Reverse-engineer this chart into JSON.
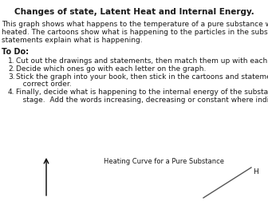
{
  "title": "Changes of state, Latent Heat and Internal Energy.",
  "intro_lines": [
    "This graph shows what happens to the temperature of a pure substance when it is",
    "heated. The cartoons show what is happening to the particles in the substance, and the",
    "statements explain what is happening."
  ],
  "todo_label": "To Do:",
  "list_items": [
    [
      "1.",
      "Cut out the drawings and statements, then match them up with each other."
    ],
    [
      "2.",
      "Decide which ones go with each letter on the graph."
    ],
    [
      "3.",
      "Stick the graph into your book, then stick in the cartoons and statements in the"
    ],
    [
      "",
      "   correct order."
    ],
    [
      "4.",
      "Finally, decide what is happening to the internal energy of the substance at each"
    ],
    [
      "",
      "   stage.  Add the words increasing, decreasing or constant where indicated."
    ]
  ],
  "graph_label": "Heating Curve for a Pure Substance",
  "graph_letter": "H",
  "background_color": "#ffffff",
  "text_color": "#1a1a1a",
  "title_fontsize": 7.5,
  "body_fontsize": 6.5,
  "todo_fontsize": 7.0
}
